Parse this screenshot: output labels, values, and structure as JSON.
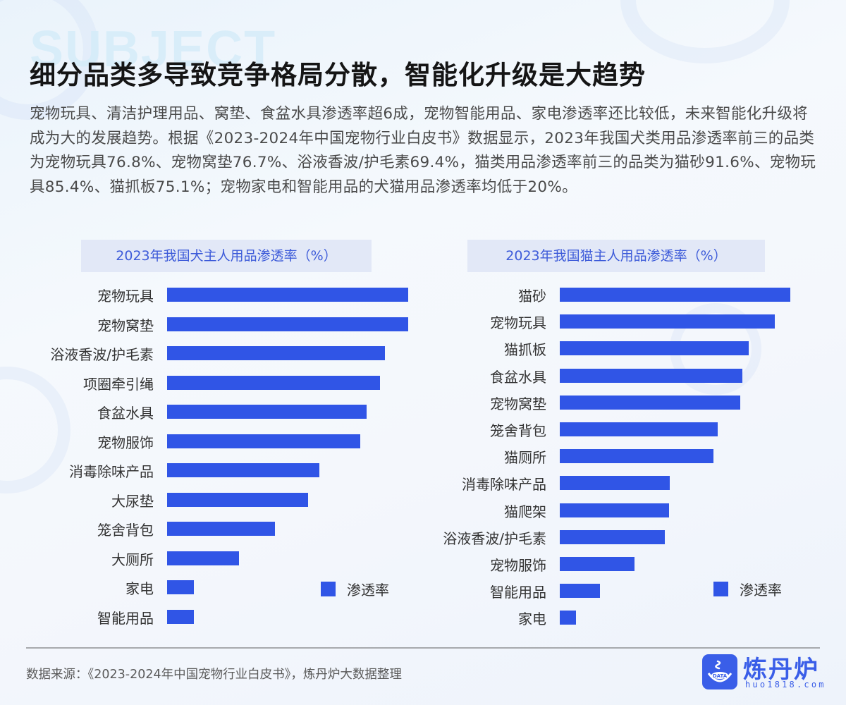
{
  "header": {
    "watermark": "SUBJECT",
    "title": "细分品类多导致竞争格局分散，智能化升级是大趋势",
    "description": "宠物玩具、清洁护理用品、窝垫、食盆水具渗透率超6成，宠物智能用品、家电渗透率还比较低，未来智能化升级将成为大的发展趋势。根据《2023-2024年中国宠物行业白皮书》数据显示，2023年我国犬类用品渗透率前三的品类为宠物玩具76.8%、宠物窝垫76.7%、浴液香波/护毛素69.4%，猫类用品渗透率前三的品类为猫砂91.6%、宠物玩具85.4%、猫抓板75.1%；宠物家电和智能用品的犬猫用品渗透率均低于20%。"
  },
  "colors": {
    "bar": "#3055e6",
    "chart_title_bg": "#e2e8f7",
    "chart_title_text": "#3d5bd9",
    "brand": "#3a5ee8"
  },
  "chart_data": [
    {
      "type": "bar",
      "orientation": "horizontal",
      "title": "2023年我国犬主人用品渗透率（%）",
      "xlabel": "",
      "ylabel": "",
      "legend": [
        "渗透率"
      ],
      "legend_position": "lower-right",
      "grid": false,
      "categories": [
        "宠物玩具",
        "宠物窝垫",
        "浴液香波/护毛素",
        "项圈牵引绳",
        "食盆水具",
        "宠物服饰",
        "消毒除味产品",
        "大尿垫",
        "笼舍背包",
        "大厕所",
        "家电",
        "智能用品"
      ],
      "values": [
        76.8,
        76.7,
        69.4,
        67.8,
        63.6,
        61.5,
        48.5,
        44.9,
        34.4,
        22.9,
        8.5,
        8.5
      ],
      "xlim": [
        0,
        100
      ]
    },
    {
      "type": "bar",
      "orientation": "horizontal",
      "title": "2023年我国猫主人用品渗透率（%）",
      "xlabel": "",
      "ylabel": "",
      "legend": [
        "渗透率"
      ],
      "legend_position": "lower-right",
      "grid": false,
      "categories": [
        "猫砂",
        "宠物玩具",
        "猫抓板",
        "食盆水具",
        "宠物窝垫",
        "笼舍背包",
        "猫厕所",
        "消毒除味产品",
        "猫爬架",
        "浴液香波/护毛素",
        "宠物服饰",
        "智能用品",
        "家电"
      ],
      "values": [
        91.6,
        85.4,
        75.1,
        72.5,
        71.7,
        62.7,
        61.1,
        43.7,
        43.4,
        41.7,
        29.7,
        16.0,
        6.4
      ],
      "xlim": [
        0,
        100
      ]
    }
  ],
  "footer": {
    "source": "数据来源：《2023-2024年中国宠物行业白皮书》，炼丹炉大数据整理",
    "logo_name": "炼丹炉",
    "logo_url": "huo1818.com",
    "logo_badge": "DATA"
  }
}
